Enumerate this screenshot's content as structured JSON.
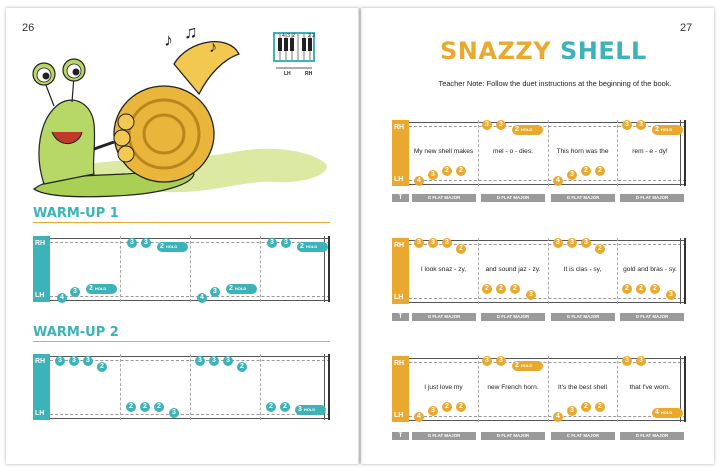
{
  "left_page": {
    "page_number": "26",
    "keyboard": {
      "finger_labels_left": "4 3 2",
      "finger_labels_right": "2 3",
      "lh_label": "LH",
      "rh_label": "RH"
    },
    "warmup1": {
      "heading": "WARM-UP 1",
      "rh_label": "RH",
      "lh_label": "LH"
    },
    "warmup2": {
      "heading": "WARM-UP 2",
      "rh_label": "RH",
      "lh_label": "LH"
    }
  },
  "right_page": {
    "page_number": "27",
    "title_word1": "SNAZZY",
    "title_word2": "SHELL",
    "teacher_note": "Teacher Note: Follow the duet instructions at the beginning of the book.",
    "rh_label": "RH",
    "lh_label": "LH",
    "t_label": "T",
    "systems": [
      {
        "lyrics": [
          "My new shell makes",
          "mel - o - dies.",
          "This horn was the",
          "rem - e - dy!"
        ],
        "chords": [
          "G FLAT MAJOR",
          "D FLAT MAJOR",
          "G FLAT MAJOR",
          "D FLAT MAJOR"
        ]
      },
      {
        "lyrics": [
          "I  look snaz - zy,",
          "and sound jaz - zy.",
          "It  is  clas - sy,",
          "gold and bras - sy."
        ],
        "chords": [
          "G FLAT MAJOR",
          "D FLAT MAJOR",
          "G FLAT MAJOR",
          "D FLAT MAJOR"
        ]
      },
      {
        "lyrics": [
          "I  just love my",
          "new French horn.",
          "It's  the best shell",
          "that  I've  worn."
        ],
        "chords": [
          "G FLAT MAJOR",
          "D FLAT MAJOR",
          "C FLAT MAJOR",
          "D FLAT MAJOR"
        ]
      }
    ]
  },
  "notes": {
    "n2": "2",
    "n3": "3",
    "n4": "4",
    "hold": "HOLD"
  },
  "colors": {
    "teal": "#3bb3b8",
    "gold": "#e9a92f"
  }
}
